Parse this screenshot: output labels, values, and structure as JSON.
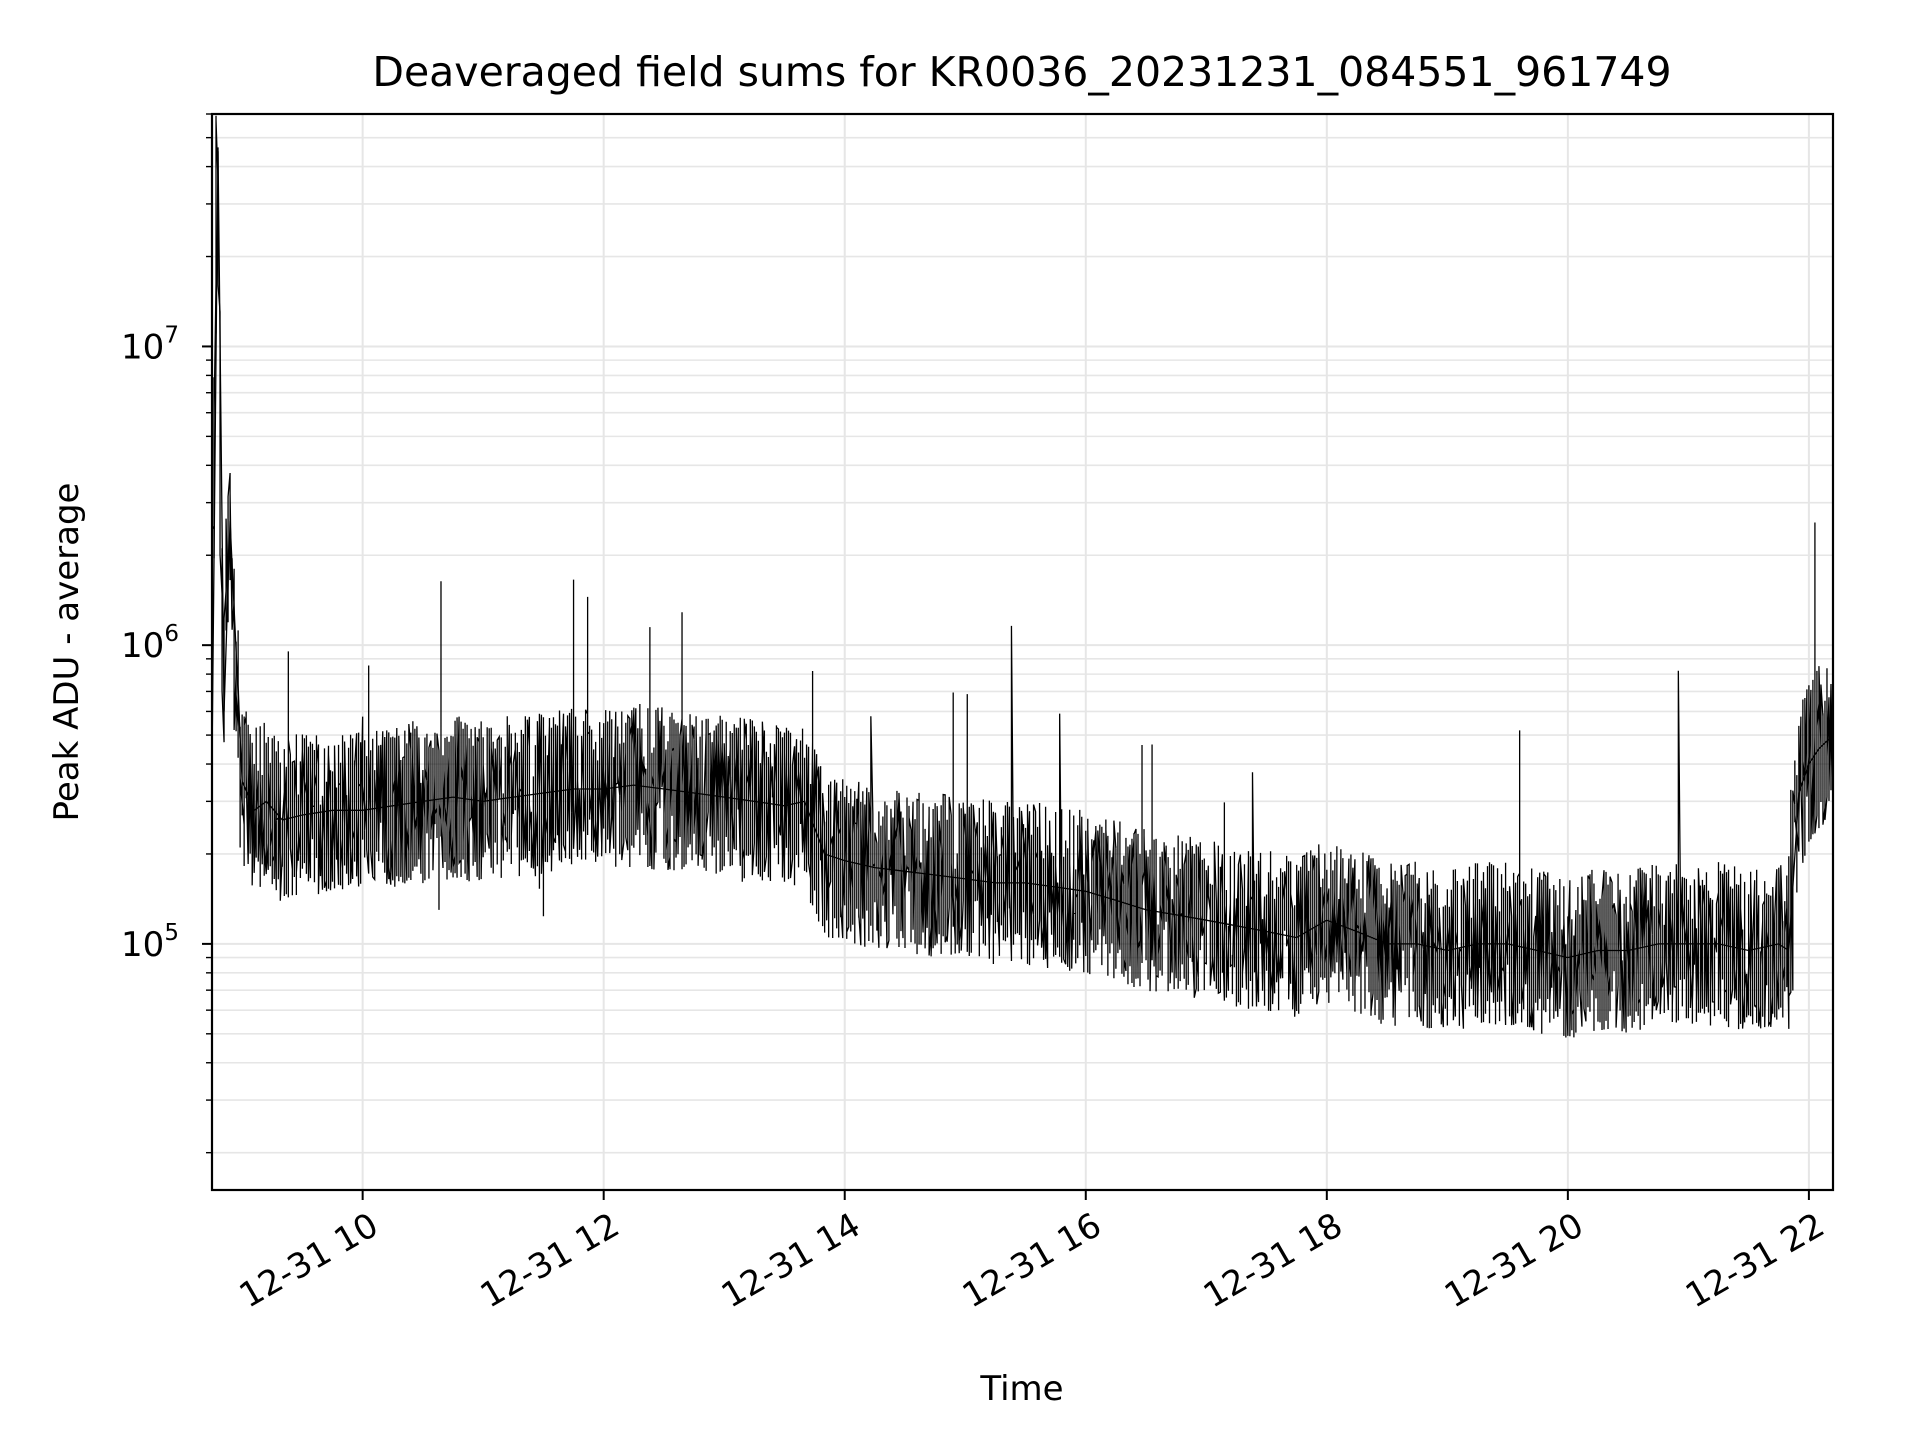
{
  "chart_data": {
    "type": "line",
    "title": "Deaveraged field sums for KR0036_20231231_084551_961749",
    "xlabel": "Time",
    "ylabel": "Peak ADU - average",
    "y_scale": "log",
    "xlim": [
      "2023-12-31 08:45",
      "2023-12-31 22:12"
    ],
    "ylim": [
      15000,
      60000000
    ],
    "x_ticks": [
      "2023-12-31 10:00",
      "2023-12-31 12:00",
      "2023-12-31 14:00",
      "2023-12-31 16:00",
      "2023-12-31 18:00",
      "2023-12-31 20:00",
      "2023-12-31 22:00"
    ],
    "x_tick_labels": [
      "12-31 10",
      "12-31 12",
      "12-31 14",
      "12-31 16",
      "12-31 18",
      "12-31 20",
      "12-31 22"
    ],
    "y_ticks": [
      {
        "value": 100000,
        "base": "10",
        "exp": "5"
      },
      {
        "value": 1000000,
        "base": "10",
        "exp": "6"
      },
      {
        "value": 10000000,
        "base": "10",
        "exp": "7"
      }
    ],
    "grid": true,
    "line_color": "#000000",
    "grid_color": "#e6e6e6",
    "series": [
      {
        "values_description_note_removed": "",
        "x": [
          "2023-12-31 08:45",
          "2023-12-31 08:48",
          "2023-12-31 08:51",
          "2023-12-31 08:54",
          "2023-12-31 09:00",
          "2023-12-31 09:06",
          "2023-12-31 09:12",
          "2023-12-31 09:20",
          "2023-12-31 09:30",
          "2023-12-31 09:45",
          "2023-12-31 10:00",
          "2023-12-31 10:15",
          "2023-12-31 10:30",
          "2023-12-31 10:45",
          "2023-12-31 11:00",
          "2023-12-31 11:15",
          "2023-12-31 11:30",
          "2023-12-31 11:45",
          "2023-12-31 12:00",
          "2023-12-31 12:15",
          "2023-12-31 12:30",
          "2023-12-31 12:45",
          "2023-12-31 13:00",
          "2023-12-31 13:15",
          "2023-12-31 13:30",
          "2023-12-31 13:40",
          "2023-12-31 13:50",
          "2023-12-31 14:00",
          "2023-12-31 14:15",
          "2023-12-31 14:30",
          "2023-12-31 14:45",
          "2023-12-31 15:00",
          "2023-12-31 15:15",
          "2023-12-31 15:30",
          "2023-12-31 15:45",
          "2023-12-31 16:00",
          "2023-12-31 16:15",
          "2023-12-31 16:30",
          "2023-12-31 16:45",
          "2023-12-31 17:00",
          "2023-12-31 17:15",
          "2023-12-31 17:30",
          "2023-12-31 17:45",
          "2023-12-31 18:00",
          "2023-12-31 18:15",
          "2023-12-31 18:30",
          "2023-12-31 18:45",
          "2023-12-31 19:00",
          "2023-12-31 19:15",
          "2023-12-31 19:30",
          "2023-12-31 19:45",
          "2023-12-31 20:00",
          "2023-12-31 20:15",
          "2023-12-31 20:30",
          "2023-12-31 20:45",
          "2023-12-31 21:00",
          "2023-12-31 21:15",
          "2023-12-31 21:30",
          "2023-12-31 21:45",
          "2023-12-31 21:50",
          "2023-12-31 21:55",
          "2023-12-31 22:00",
          "2023-12-31 22:05",
          "2023-12-31 22:12"
        ],
        "y": [
          400000,
          45000000,
          600000,
          2600000,
          350000,
          280000,
          300000,
          260000,
          270000,
          280000,
          280000,
          290000,
          300000,
          310000,
          300000,
          310000,
          320000,
          330000,
          330000,
          340000,
          330000,
          320000,
          310000,
          300000,
          290000,
          300000,
          200000,
          190000,
          180000,
          175000,
          170000,
          165000,
          160000,
          160000,
          155000,
          150000,
          140000,
          130000,
          125000,
          120000,
          115000,
          110000,
          105000,
          120000,
          110000,
          100000,
          100000,
          95000,
          100000,
          100000,
          95000,
          90000,
          95000,
          95000,
          100000,
          100000,
          100000,
          95000,
          100000,
          95000,
          320000,
          400000,
          450000,
          500000
        ]
      }
    ]
  }
}
